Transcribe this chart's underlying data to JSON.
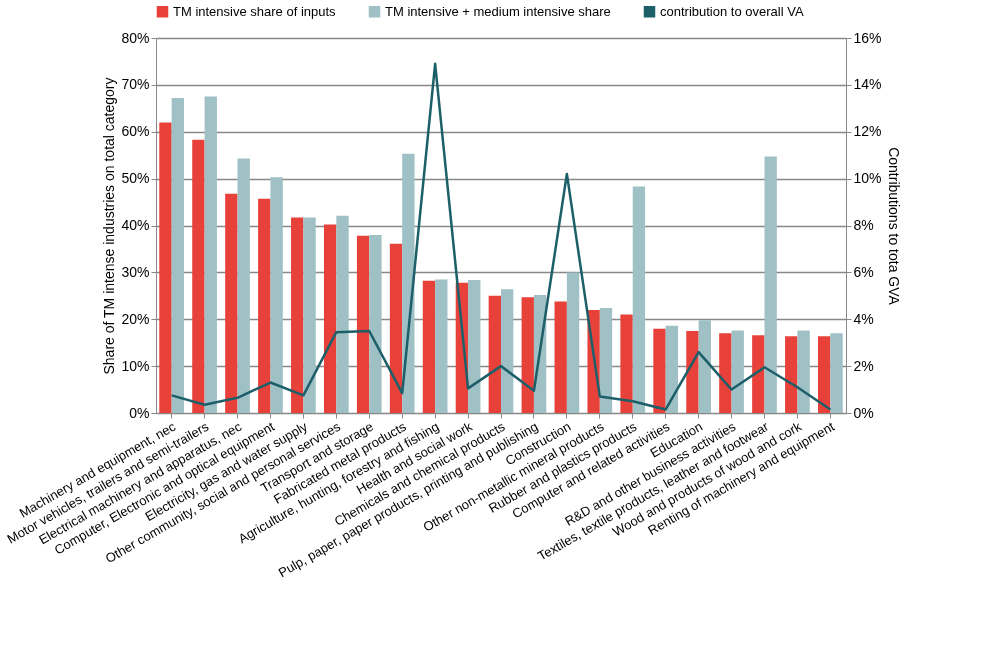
{
  "chart_data": {
    "type": "bar",
    "ylabel": "Share of TM intense industries on total category",
    "y2label": "Contributions to tota GVA",
    "categories": [
      "Machinery and equipment, nec",
      "Motor vehicles, trailers and semi-trailers",
      "Electrical machinery and apparatus, nec",
      "Computer, Electronic and optical equipment",
      "Electricity, gas and water supply",
      "Other community, social and personal services",
      "Transport and storage",
      "Fabricated metal products",
      "Agriculture, hunting, forestry and fishing",
      "Health and social work",
      "Chemicals and chemical products",
      "Pulp, paper, paper products, printing and publishing",
      "Construction",
      "Other non-metallic mineral products",
      "Rubber and plastics products",
      "Computer and related activities",
      "Education",
      "R&D and other business activities",
      "Textiles, textile products, leather and footwear",
      "Wood and products of wood and cork",
      "Renting of machinery and equipment"
    ],
    "series": [
      {
        "name": "TM intensive share of inputs",
        "color": "#e8413a",
        "values": [
          62,
          58.3,
          46.8,
          45.7,
          41.7,
          40.2,
          37.8,
          36.1,
          28.2,
          27.8,
          25,
          24.7,
          23.8,
          22,
          21,
          18,
          17.5,
          17,
          16.6,
          16.4,
          16.4
        ]
      },
      {
        "name": "TM intensive + medium intensive share",
        "color": "#9fc0c4",
        "values": [
          67.2,
          67.5,
          54.3,
          50.3,
          41.7,
          42.1,
          38,
          55.3,
          28.5,
          28.4,
          26.4,
          25.2,
          30,
          22.4,
          48.3,
          18.6,
          19.8,
          17.6,
          54.7,
          17.6,
          17
        ]
      },
      {
        "name": "contribution to overall VA",
        "type": "line",
        "axis": "y2",
        "color": "#1d5f69",
        "values": [
          0.75,
          0.35,
          0.65,
          1.3,
          0.75,
          3.45,
          3.5,
          0.85,
          14.9,
          1.05,
          2.0,
          0.95,
          10.2,
          0.7,
          0.5,
          0.15,
          2.6,
          1.0,
          1.95,
          1.1,
          0.15
        ]
      }
    ],
    "ylim": [
      0,
      80
    ],
    "yticks": [
      {
        "value": 0,
        "label": "0%"
      },
      {
        "value": 10,
        "label": "10%"
      },
      {
        "value": 20,
        "label": "20%"
      },
      {
        "value": 30,
        "label": "30%"
      },
      {
        "value": 40,
        "label": "40%"
      },
      {
        "value": 50,
        "label": "50%"
      },
      {
        "value": 60,
        "label": "60%"
      },
      {
        "value": 70,
        "label": "70%"
      },
      {
        "value": 80,
        "label": "80%"
      }
    ],
    "y2lim": [
      0,
      16
    ],
    "y2ticks": [
      {
        "value": 0,
        "label": "0%"
      },
      {
        "value": 2,
        "label": "2%"
      },
      {
        "value": 4,
        "label": "4%"
      },
      {
        "value": 6,
        "label": "6%"
      },
      {
        "value": 8,
        "label": "8%"
      },
      {
        "value": 10,
        "label": "10%"
      },
      {
        "value": 12,
        "label": "12%"
      },
      {
        "value": 14,
        "label": "14%"
      },
      {
        "value": 16,
        "label": "16%"
      }
    ],
    "grid": "y",
    "legend": "top"
  }
}
